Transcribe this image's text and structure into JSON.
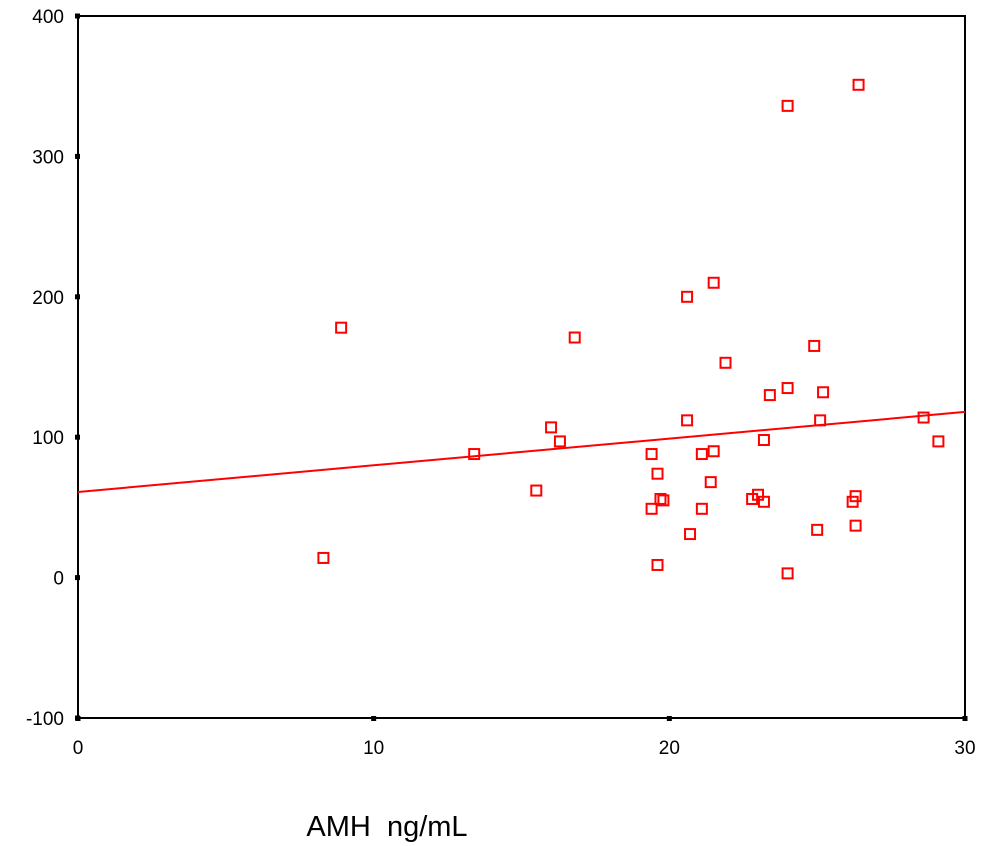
{
  "chart_data": {
    "type": "scatter",
    "title": "",
    "xlabel": "AMH  ng/mL",
    "ylabel": "",
    "xlim": [
      0,
      30
    ],
    "ylim": [
      -100,
      400
    ],
    "x_ticks": [
      "0",
      "10",
      "20",
      "30"
    ],
    "y_ticks": [
      "400",
      "300",
      "200",
      "100",
      "0",
      "-100"
    ],
    "grid": false,
    "series": [
      {
        "color": "#ff0000",
        "marker": "square-open",
        "points": [
          {
            "x": 8.3,
            "y": 14
          },
          {
            "x": 8.9,
            "y": 178
          },
          {
            "x": 13.4,
            "y": 88
          },
          {
            "x": 15.5,
            "y": 62
          },
          {
            "x": 16.0,
            "y": 107
          },
          {
            "x": 16.3,
            "y": 97
          },
          {
            "x": 16.8,
            "y": 171
          },
          {
            "x": 19.4,
            "y": 88
          },
          {
            "x": 19.4,
            "y": 49
          },
          {
            "x": 19.6,
            "y": 74
          },
          {
            "x": 19.6,
            "y": 9
          },
          {
            "x": 19.7,
            "y": 56
          },
          {
            "x": 19.8,
            "y": 55
          },
          {
            "x": 20.6,
            "y": 200
          },
          {
            "x": 20.6,
            "y": 112
          },
          {
            "x": 20.7,
            "y": 31
          },
          {
            "x": 21.1,
            "y": 88
          },
          {
            "x": 21.1,
            "y": 49
          },
          {
            "x": 21.4,
            "y": 68
          },
          {
            "x": 21.5,
            "y": 90
          },
          {
            "x": 21.5,
            "y": 210
          },
          {
            "x": 21.9,
            "y": 153
          },
          {
            "x": 22.8,
            "y": 56
          },
          {
            "x": 23.0,
            "y": 59
          },
          {
            "x": 23.2,
            "y": 98
          },
          {
            "x": 23.2,
            "y": 54
          },
          {
            "x": 23.4,
            "y": 130
          },
          {
            "x": 24.0,
            "y": 135
          },
          {
            "x": 24.0,
            "y": 336
          },
          {
            "x": 24.0,
            "y": 3
          },
          {
            "x": 24.9,
            "y": 165
          },
          {
            "x": 25.0,
            "y": 34
          },
          {
            "x": 25.1,
            "y": 112
          },
          {
            "x": 25.2,
            "y": 132
          },
          {
            "x": 26.2,
            "y": 54
          },
          {
            "x": 26.3,
            "y": 58
          },
          {
            "x": 26.3,
            "y": 37
          },
          {
            "x": 26.4,
            "y": 351
          },
          {
            "x": 28.6,
            "y": 114
          },
          {
            "x": 29.1,
            "y": 97
          }
        ]
      }
    ],
    "regression_line": {
      "color": "#ff0000",
      "x": [
        0,
        30
      ],
      "y": [
        61,
        118
      ]
    }
  }
}
